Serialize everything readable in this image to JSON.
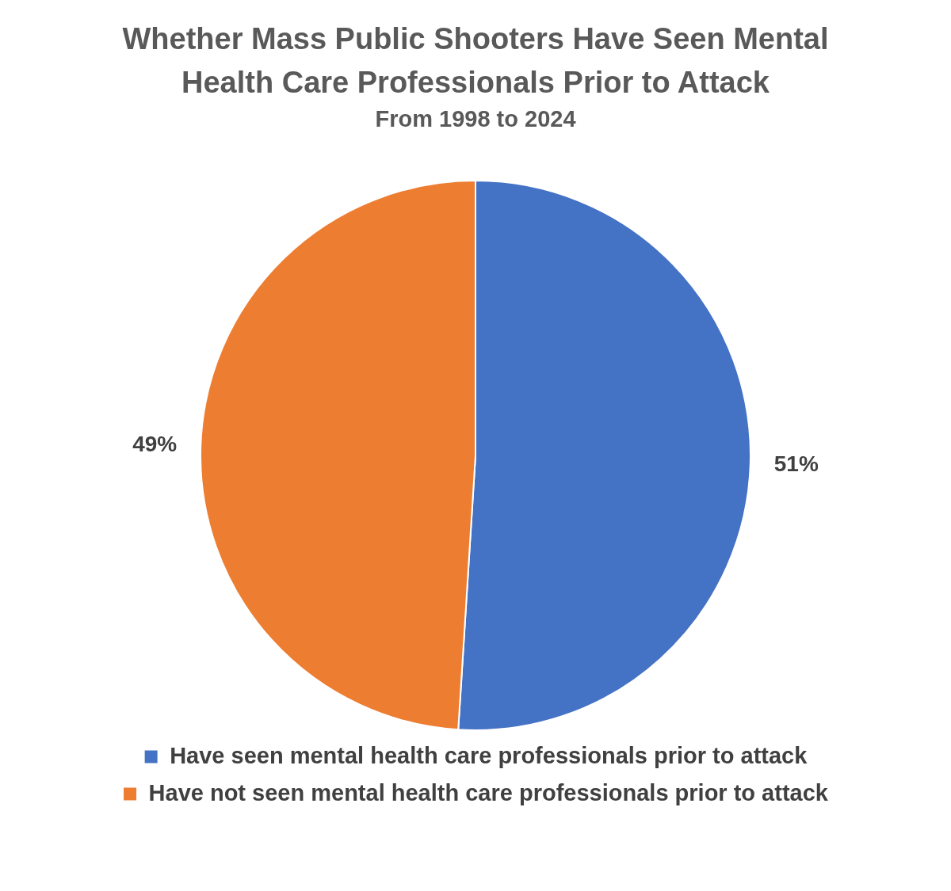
{
  "chart_data": {
    "type": "pie",
    "title": "Whether Mass Public Shooters Have Seen Mental Health Care Professionals Prior to Attack",
    "subtitle": "From 1998 to 2024",
    "categories": [
      "Have seen mental health care professionals prior to attack",
      "Have not seen mental health care professionals prior to attack"
    ],
    "values": [
      51,
      49
    ],
    "colors": [
      "#4472c4",
      "#ed7d31"
    ],
    "value_labels": [
      "51%",
      "49%"
    ],
    "legend": "bottom"
  }
}
